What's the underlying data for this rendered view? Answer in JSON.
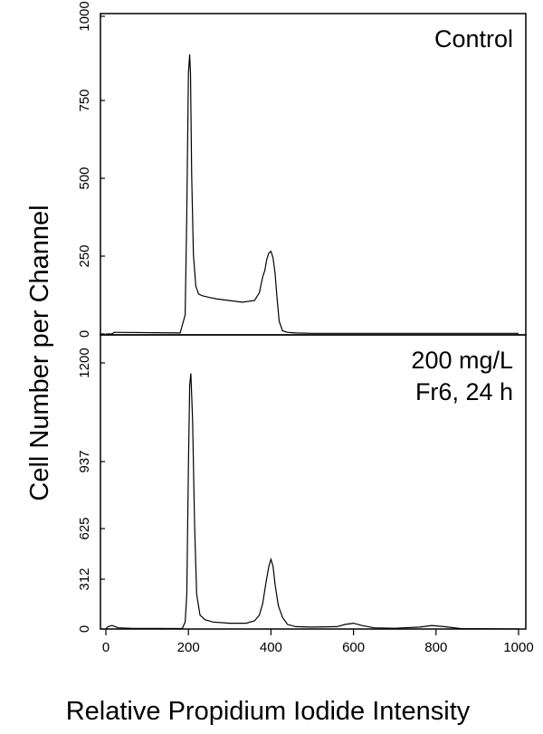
{
  "chart_data": {
    "type": "line",
    "xlabel": "Relative Propidium Iodide Intensity",
    "ylabel": "Cell Number per Channel",
    "x_ticks": [
      "0",
      "200",
      "400",
      "600",
      "800",
      "1000"
    ],
    "xlim": [
      0,
      1030
    ],
    "panels": [
      {
        "label_lines": [
          "Control"
        ],
        "ylim": [
          0,
          1000
        ],
        "y_ticks": [
          "0",
          "250",
          "500",
          "750",
          "1000"
        ],
        "series": [
          {
            "x": [
              0,
              15,
              20,
              180,
              192,
              196,
              200,
              203,
              205,
              208,
              212,
              218,
              225,
              235,
              250,
              270,
              300,
              330,
              360,
              372,
              380,
              385,
              390,
              395,
              400,
              405,
              410,
              415,
              420,
              428,
              440,
              460,
              500,
              600,
              800,
              1000
            ],
            "y": [
              0,
              0,
              5,
              3,
              60,
              380,
              820,
              880,
              820,
              500,
              250,
              150,
              125,
              120,
              115,
              110,
              105,
              100,
              105,
              130,
              180,
              200,
              235,
              255,
              260,
              240,
              190,
              110,
              40,
              10,
              5,
              3,
              2,
              2,
              2,
              2
            ]
          }
        ]
      },
      {
        "label_lines": [
          "200 mg/L",
          "Fr6, 24 h"
        ],
        "ylim": [
          0,
          1250
        ],
        "y_ticks": [
          "0",
          "312",
          "625",
          "937",
          "1200"
        ],
        "series": [
          {
            "x": [
              0,
              5,
              15,
              20,
              30,
              60,
              185,
              192,
              196,
              200,
              203,
              206,
              210,
              215,
              220,
              228,
              240,
              260,
              300,
              340,
              360,
              372,
              380,
              388,
              395,
              400,
              405,
              410,
              418,
              428,
              440,
              460,
              500,
              560,
              580,
              600,
              620,
              650,
              700,
              760,
              790,
              820,
              860,
              1000
            ],
            "y": [
              0,
              10,
              15,
              12,
              5,
              3,
              2,
              30,
              150,
              700,
              1050,
              1100,
              900,
              450,
              150,
              60,
              40,
              30,
              25,
              25,
              35,
              60,
              110,
              200,
              270,
              300,
              270,
              190,
              100,
              50,
              20,
              10,
              8,
              10,
              20,
              25,
              15,
              5,
              3,
              8,
              15,
              10,
              2,
              0
            ]
          }
        ]
      }
    ]
  }
}
